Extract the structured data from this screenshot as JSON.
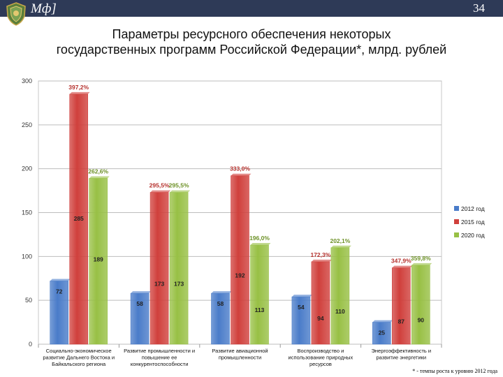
{
  "header": {
    "brand": "Мф]",
    "slide_number": "34"
  },
  "title_lines": [
    "Параметры ресурсного обеспечения некоторых",
    "государственных программ Российской Федерации*, млрд. рублей"
  ],
  "footnote": "* - темпы роста к уровню 2012 года",
  "colors": {
    "s2012": "#4a7cc9",
    "s2015": "#d0403c",
    "s2020": "#98c045",
    "header_bg": "#2e3a57"
  },
  "chart_data": {
    "type": "bar",
    "ylim": [
      0,
      300
    ],
    "yticks": [
      "0",
      "50",
      "100",
      "150",
      "200",
      "250",
      "300"
    ],
    "grid": true,
    "legend_position": "right",
    "categories": [
      [
        "Социально-экономическое",
        "развитие Дальнего Востока и",
        "Байкальского региона"
      ],
      [
        "Развитие промышленности и",
        "повышение ее",
        "конкурентоспособности"
      ],
      [
        "Развитие авиационной",
        "промышленности"
      ],
      [
        "Воспроизводство и",
        "использование природных",
        "ресурсов"
      ],
      [
        "Энергоэффективность и",
        "развитие энергетики"
      ]
    ],
    "series": [
      {
        "name": "2012 год",
        "values": [
          72,
          58,
          58,
          54,
          25
        ],
        "labels": [
          "72",
          "58",
          "58",
          "54",
          "25"
        ]
      },
      {
        "name": "2015 год",
        "values": [
          285,
          173,
          192,
          94,
          87
        ],
        "labels": [
          "285",
          "173",
          "192",
          "94",
          "87"
        ]
      },
      {
        "name": "2020 год",
        "values": [
          189,
          173,
          113,
          110,
          90
        ],
        "labels": [
          "189",
          "173",
          "113",
          "110",
          "90"
        ]
      }
    ],
    "growth_labels": [
      {
        "series": "2015 год",
        "values": [
          "397,2%",
          "295,5%",
          "333,0%",
          "172,3%",
          "347,9%"
        ]
      },
      {
        "series": "2020 год",
        "values": [
          "262,6%",
          "295,5%",
          "196,0%",
          "202,1%",
          "359,8%"
        ]
      }
    ]
  }
}
